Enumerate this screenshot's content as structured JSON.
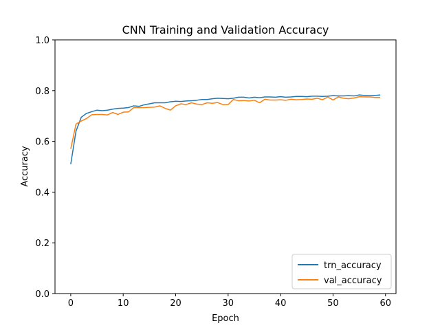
{
  "chart_data": {
    "type": "line",
    "title": "CNN Training and Validation Accuracy",
    "xlabel": "Epoch",
    "ylabel": "Accuracy",
    "xlim": [
      -3,
      62
    ],
    "ylim": [
      0,
      1.0
    ],
    "xticks": [
      0,
      10,
      20,
      30,
      40,
      50,
      60
    ],
    "yticks": [
      0.0,
      0.2,
      0.4,
      0.6,
      0.8,
      1.0
    ],
    "ytick_labels": [
      "0.0",
      "0.2",
      "0.4",
      "0.6",
      "0.8",
      "1.0"
    ],
    "grid": false,
    "legend_position": "lower-right",
    "x": [
      0,
      1,
      2,
      3,
      4,
      5,
      6,
      7,
      8,
      9,
      10,
      11,
      12,
      13,
      14,
      15,
      16,
      17,
      18,
      19,
      20,
      21,
      22,
      23,
      24,
      25,
      26,
      27,
      28,
      29,
      30,
      31,
      32,
      33,
      34,
      35,
      36,
      37,
      38,
      39,
      40,
      41,
      42,
      43,
      44,
      45,
      46,
      47,
      48,
      49,
      50,
      51,
      52,
      53,
      54,
      55,
      56,
      57,
      58,
      59
    ],
    "series": [
      {
        "name": "trn_accuracy",
        "color": "#1f77b4",
        "values": [
          0.51,
          0.64,
          0.695,
          0.71,
          0.717,
          0.723,
          0.721,
          0.723,
          0.727,
          0.73,
          0.731,
          0.733,
          0.74,
          0.738,
          0.744,
          0.748,
          0.752,
          0.752,
          0.752,
          0.756,
          0.758,
          0.757,
          0.759,
          0.76,
          0.762,
          0.765,
          0.765,
          0.768,
          0.77,
          0.769,
          0.768,
          0.77,
          0.774,
          0.774,
          0.771,
          0.774,
          0.772,
          0.775,
          0.775,
          0.774,
          0.776,
          0.774,
          0.775,
          0.777,
          0.777,
          0.776,
          0.778,
          0.778,
          0.777,
          0.778,
          0.78,
          0.779,
          0.779,
          0.78,
          0.779,
          0.783,
          0.781,
          0.78,
          0.781,
          0.783
        ]
      },
      {
        "name": "val_accuracy",
        "color": "#ff7f0e",
        "values": [
          0.57,
          0.668,
          0.68,
          0.69,
          0.705,
          0.706,
          0.706,
          0.704,
          0.714,
          0.706,
          0.715,
          0.716,
          0.733,
          0.733,
          0.733,
          0.734,
          0.735,
          0.74,
          0.73,
          0.723,
          0.74,
          0.748,
          0.745,
          0.752,
          0.747,
          0.745,
          0.752,
          0.75,
          0.753,
          0.745,
          0.745,
          0.765,
          0.76,
          0.761,
          0.759,
          0.762,
          0.752,
          0.766,
          0.763,
          0.763,
          0.764,
          0.762,
          0.766,
          0.764,
          0.765,
          0.767,
          0.766,
          0.77,
          0.764,
          0.775,
          0.763,
          0.775,
          0.77,
          0.768,
          0.771,
          0.776,
          0.775,
          0.775,
          0.773,
          0.773
        ]
      }
    ]
  }
}
